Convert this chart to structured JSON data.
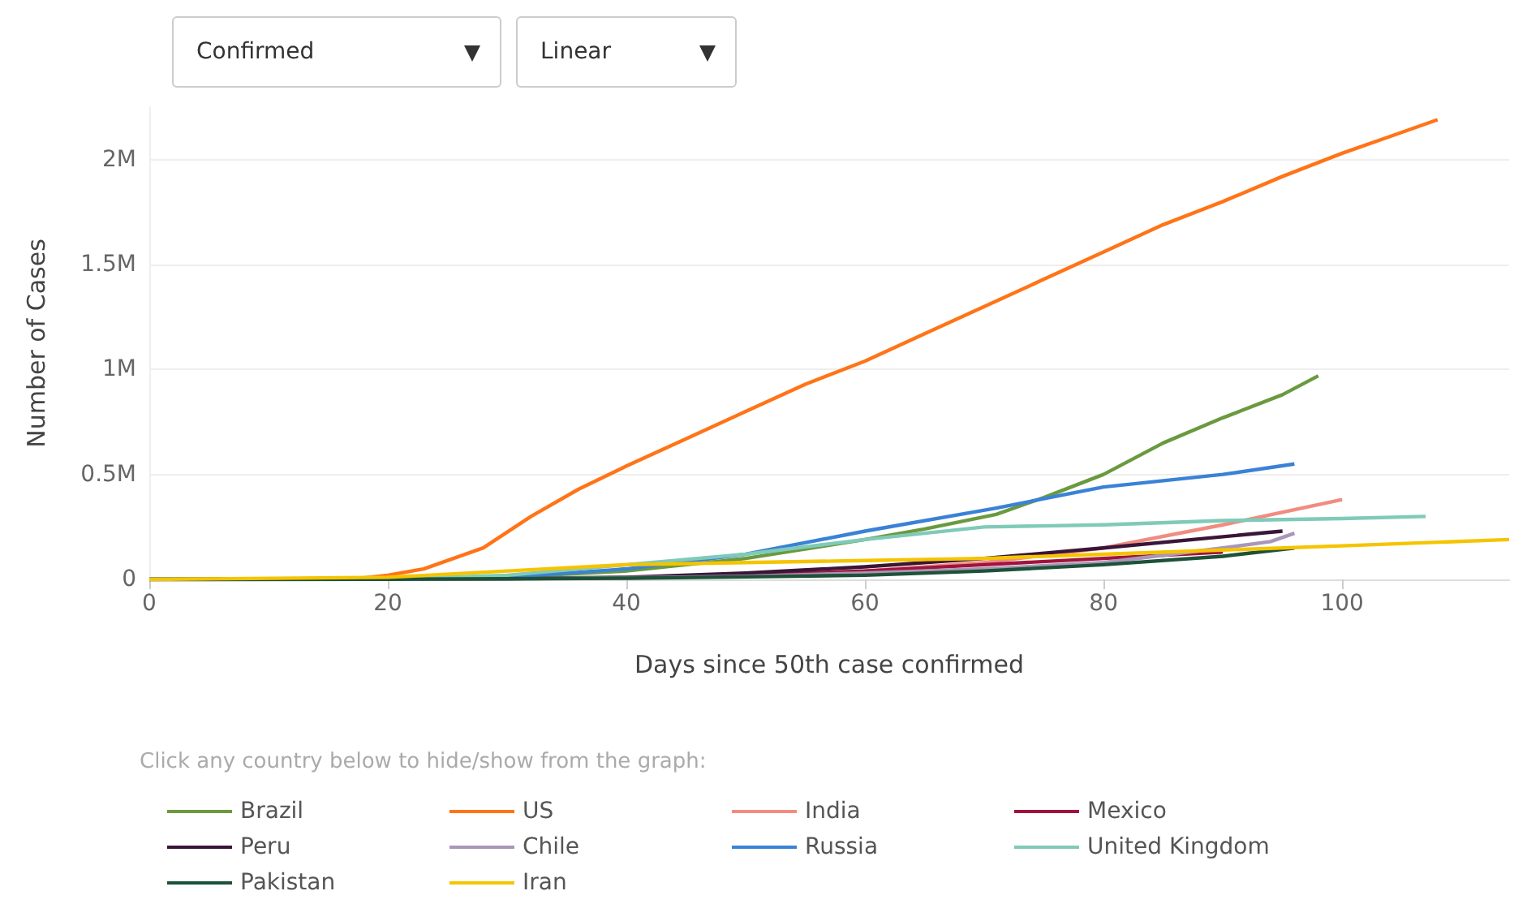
{
  "chart_data": {
    "type": "line",
    "xlabel": "Days since 50th case confirmed",
    "ylabel": "Number of Cases",
    "annotations": [
      "Confirmed",
      "Linear",
      "Click any country below to hide/show from the graph:"
    ],
    "xlim": [
      0,
      114
    ],
    "xticks": [
      0,
      20,
      40,
      60,
      80,
      100
    ],
    "ylim": [
      0,
      2250000
    ],
    "yticks": [
      {
        "value": 0,
        "label": "0"
      },
      {
        "value": 500000,
        "label": "0.5M"
      },
      {
        "value": 1000000,
        "label": "1M"
      },
      {
        "value": 1500000,
        "label": "1.5M"
      },
      {
        "value": 2000000,
        "label": "2M"
      }
    ],
    "grid": "y",
    "legend": "bottom",
    "marker": "none",
    "series": [
      {
        "name": "Brazil",
        "color": "#6a9a3f",
        "x": [
          0,
          20,
          30,
          40,
          50,
          60,
          65,
          71,
          75,
          80,
          85,
          90,
          95,
          98
        ],
        "values": [
          0,
          1000,
          10000,
          40000,
          100000,
          190000,
          240000,
          310000,
          390000,
          500000,
          650000,
          770000,
          880000,
          970000
        ]
      },
      {
        "name": "US",
        "color": "#ff7417",
        "x": [
          0,
          17,
          20,
          23,
          28,
          32,
          36,
          40,
          45,
          50,
          55,
          60,
          65,
          70,
          75,
          80,
          85,
          90,
          95,
          100,
          104,
          108
        ],
        "values": [
          0,
          1000,
          20000,
          50000,
          150000,
          300000,
          430000,
          540000,
          670000,
          800000,
          930000,
          1040000,
          1170000,
          1300000,
          1430000,
          1560000,
          1690000,
          1800000,
          1920000,
          2030000,
          2110000,
          2190000
        ]
      },
      {
        "name": "India",
        "color": "#f08c80",
        "x": [
          50,
          60,
          70,
          80,
          90,
          100
        ],
        "values": [
          20000,
          40000,
          80000,
          150000,
          260000,
          380000
        ]
      },
      {
        "name": "Mexico",
        "color": "#a0143c",
        "x": [
          40,
          50,
          60,
          70,
          80,
          90
        ],
        "values": [
          8000,
          20000,
          40000,
          70000,
          100000,
          130000
        ]
      },
      {
        "name": "Peru",
        "color": "#3b1538",
        "x": [
          0,
          20,
          30,
          40,
          50,
          60,
          70,
          80,
          95
        ],
        "values": [
          0,
          1000,
          4000,
          10000,
          30000,
          60000,
          100000,
          150000,
          230000
        ]
      },
      {
        "name": "Chile",
        "color": "#a996b8",
        "x": [
          0,
          20,
          30,
          40,
          50,
          60,
          70,
          80,
          90,
          94,
          96
        ],
        "values": [
          0,
          1000,
          3000,
          8000,
          15000,
          30000,
          50000,
          80000,
          150000,
          180000,
          220000
        ]
      },
      {
        "name": "Russia",
        "color": "#3a82d6",
        "x": [
          0,
          20,
          30,
          40,
          50,
          60,
          71,
          80,
          90,
          96
        ],
        "values": [
          0,
          1000,
          10000,
          50000,
          120000,
          230000,
          340000,
          440000,
          500000,
          550000
        ]
      },
      {
        "name": "United Kingdom",
        "color": "#7fcab8",
        "x": [
          0,
          20,
          30,
          40,
          50,
          60,
          70,
          80,
          90,
          100,
          107
        ],
        "values": [
          0,
          1000,
          20000,
          70000,
          120000,
          190000,
          250000,
          260000,
          280000,
          290000,
          300000
        ]
      },
      {
        "name": "Pakistan",
        "color": "#1d5238",
        "x": [
          0,
          20,
          30,
          40,
          50,
          60,
          70,
          80,
          90,
          96
        ],
        "values": [
          0,
          1000,
          3000,
          6000,
          12000,
          20000,
          40000,
          70000,
          110000,
          150000
        ]
      },
      {
        "name": "Iran",
        "color": "#f5c400",
        "x": [
          0,
          20,
          30,
          40,
          50,
          60,
          70,
          80,
          90,
          100,
          114
        ],
        "values": [
          0,
          10000,
          40000,
          70000,
          80000,
          90000,
          100000,
          120000,
          140000,
          160000,
          190000
        ]
      }
    ]
  }
}
